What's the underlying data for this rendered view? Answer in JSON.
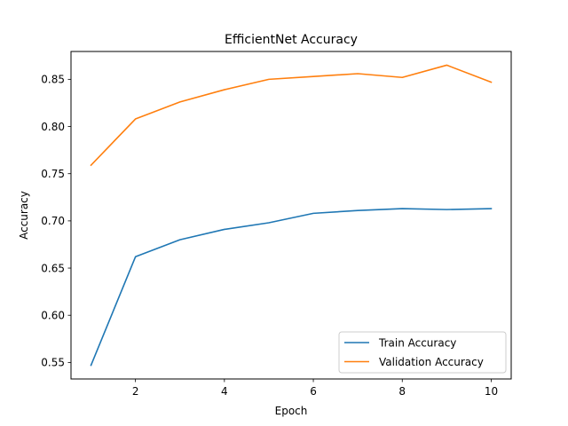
{
  "chart_data": {
    "type": "line",
    "title": "EfficientNet Accuracy",
    "xlabel": "Epoch",
    "ylabel": "Accuracy",
    "x": [
      1,
      2,
      3,
      4,
      5,
      6,
      7,
      8,
      9,
      10
    ],
    "xlim": [
      0.55,
      10.45
    ],
    "ylim": [
      0.5325,
      0.8795
    ],
    "xticks": [
      2,
      4,
      6,
      8,
      10
    ],
    "xtick_labels": [
      "2",
      "4",
      "6",
      "8",
      "10"
    ],
    "yticks": [
      0.55,
      0.6,
      0.65,
      0.7,
      0.75,
      0.8,
      0.85
    ],
    "ytick_labels": [
      "0.55",
      "0.60",
      "0.65",
      "0.70",
      "0.75",
      "0.80",
      "0.85"
    ],
    "grid": false,
    "legend_position": "lower-right",
    "series": [
      {
        "name": "Train Accuracy",
        "color": "#1f77b4",
        "values": [
          0.547,
          0.662,
          0.68,
          0.691,
          0.698,
          0.708,
          0.711,
          0.713,
          0.712,
          0.713
        ]
      },
      {
        "name": "Validation Accuracy",
        "color": "#ff7f0e",
        "values": [
          0.759,
          0.808,
          0.826,
          0.839,
          0.85,
          0.853,
          0.856,
          0.852,
          0.865,
          0.847
        ]
      }
    ]
  }
}
